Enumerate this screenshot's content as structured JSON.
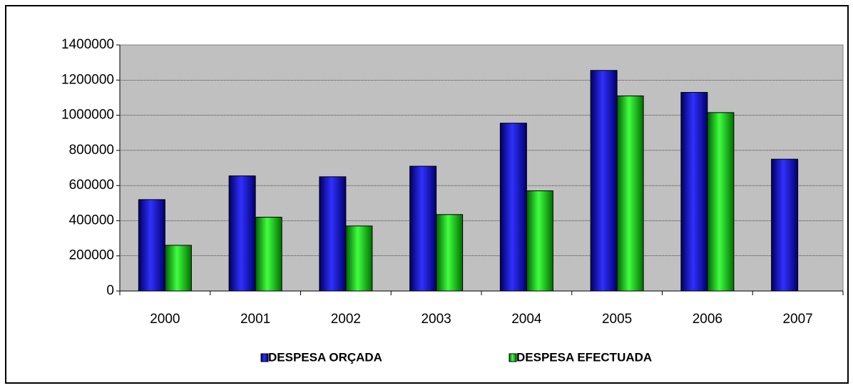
{
  "chart_data": {
    "type": "bar",
    "categories": [
      "2000",
      "2001",
      "2002",
      "2003",
      "2004",
      "2005",
      "2006",
      "2007"
    ],
    "series": [
      {
        "name": "DESPESA ORÇADA",
        "color": "#0000a0",
        "values": [
          520000,
          655000,
          650000,
          710000,
          955000,
          1255000,
          1130000,
          750000
        ]
      },
      {
        "name": "DESPESA EFECTUADA",
        "color": "#00c000",
        "values": [
          260000,
          420000,
          370000,
          435000,
          570000,
          1110000,
          1015000,
          null
        ]
      }
    ],
    "ylim": [
      0,
      1400000
    ],
    "yticks": [
      0,
      200000,
      400000,
      600000,
      800000,
      1000000,
      1200000,
      1400000
    ],
    "grid": true,
    "legend": "bottom"
  }
}
